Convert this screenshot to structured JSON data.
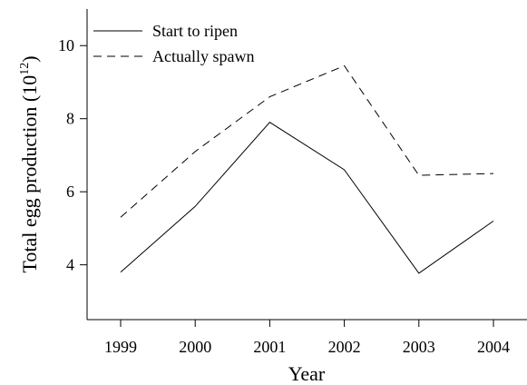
{
  "chart_data": {
    "type": "line",
    "title": "",
    "xlabel": "Year",
    "ylabel_main": "Total egg production (10",
    "ylabel_exp": "12",
    "ylabel_close": ")",
    "x": [
      "1999",
      "2000",
      "2001",
      "2002",
      "2003",
      "2004"
    ],
    "xlim": [
      1998.55,
      2004.45
    ],
    "ylim": [
      2.5,
      11.0
    ],
    "yticks": [
      "4",
      "6",
      "8",
      "10"
    ],
    "ytick_values": [
      4,
      6,
      8,
      10
    ],
    "grid": false,
    "legend_position": "top-left",
    "series": [
      {
        "name": "Start to ripen",
        "style": "solid",
        "color": "#000000",
        "values": [
          3.8,
          5.6,
          7.9,
          6.6,
          3.77,
          5.2
        ]
      },
      {
        "name": "Actually spawn",
        "style": "dashed",
        "color": "#000000",
        "values": [
          5.3,
          7.1,
          8.6,
          9.45,
          6.45,
          6.5
        ]
      }
    ]
  }
}
